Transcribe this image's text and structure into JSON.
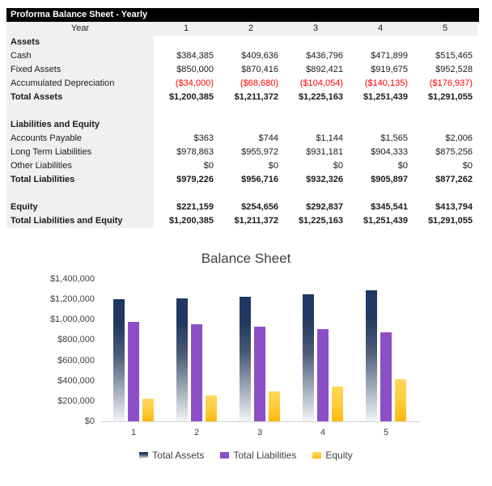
{
  "sheet": {
    "title": "Proforma Balance Sheet - Yearly"
  },
  "colors": {
    "header_bg": "#000000",
    "header_text": "#FFFFFF",
    "label_column_bg": "#F0F0F0",
    "negative_value": "#FF0000",
    "total_assets_bar": "#1F3864",
    "total_liabilities_bar": "#8C4FC8",
    "equity_bar": "#FDB90D"
  },
  "table": {
    "year_label": "Year",
    "year_values": [
      "1",
      "2",
      "3",
      "4",
      "5"
    ],
    "rows": [
      {
        "label": "Assets",
        "type": "section",
        "values": [
          "",
          "",
          "",
          "",
          ""
        ]
      },
      {
        "label": "Cash",
        "type": "data",
        "values": [
          "$384,385",
          "$409,636",
          "$436,796",
          "$471,899",
          "$515,465"
        ]
      },
      {
        "label": "Fixed Assets",
        "type": "data",
        "values": [
          "$850,000",
          "$870,416",
          "$892,421",
          "$919,675",
          "$952,528"
        ]
      },
      {
        "label": "Accumulated Depreciation",
        "type": "negative",
        "values": [
          "($34,000)",
          "($68,680)",
          "($104,054)",
          "($140,135)",
          "($176,937)"
        ]
      },
      {
        "label": "Total Assets",
        "type": "total",
        "values": [
          "$1,200,385",
          "$1,211,372",
          "$1,225,163",
          "$1,251,439",
          "$1,291,055"
        ]
      },
      {
        "label": "",
        "type": "blank",
        "values": [
          "",
          "",
          "",
          "",
          ""
        ]
      },
      {
        "label": "Liabilities and Equity",
        "type": "section",
        "values": [
          "",
          "",
          "",
          "",
          ""
        ]
      },
      {
        "label": "Accounts Payable",
        "type": "data",
        "values": [
          "$363",
          "$744",
          "$1,144",
          "$1,565",
          "$2,006"
        ]
      },
      {
        "label": "Long Term Liabilities",
        "type": "data",
        "values": [
          "$978,863",
          "$955,972",
          "$931,181",
          "$904,333",
          "$875,256"
        ]
      },
      {
        "label": "Other Liabilities",
        "type": "data",
        "values": [
          "$0",
          "$0",
          "$0",
          "$0",
          "$0"
        ]
      },
      {
        "label": "Total Liabilities",
        "type": "total",
        "values": [
          "$979,226",
          "$956,716",
          "$932,326",
          "$905,897",
          "$877,262"
        ]
      },
      {
        "label": "",
        "type": "blank",
        "values": [
          "",
          "",
          "",
          "",
          ""
        ]
      },
      {
        "label": "Equity",
        "type": "total",
        "values": [
          "$221,159",
          "$254,656",
          "$292,837",
          "$345,541",
          "$413,794"
        ]
      },
      {
        "label": "Total Liabilities and Equity",
        "type": "total",
        "values": [
          "$1,200,385",
          "$1,211,372",
          "$1,225,163",
          "$1,251,439",
          "$1,291,055"
        ]
      }
    ]
  },
  "chart_data": {
    "type": "bar",
    "title": "Balance Sheet",
    "categories": [
      "1",
      "2",
      "3",
      "4",
      "5"
    ],
    "series": [
      {
        "name": "Total Assets",
        "values": [
          1200385,
          1211372,
          1225163,
          1251439,
          1291055
        ]
      },
      {
        "name": "Total Liabilities",
        "values": [
          979226,
          956716,
          932326,
          905897,
          877262
        ]
      },
      {
        "name": "Equity",
        "values": [
          221159,
          254656,
          292837,
          345541,
          413794
        ]
      }
    ],
    "xlabel": "",
    "ylabel": "",
    "ylim": [
      0,
      1400000
    ],
    "ytick_step": 200000,
    "ytick_labels": [
      "$0",
      "$200,000",
      "$400,000",
      "$600,000",
      "$800,000",
      "$1,000,000",
      "$1,200,000",
      "$1,400,000"
    ],
    "grid": false,
    "legend_position": "bottom"
  }
}
